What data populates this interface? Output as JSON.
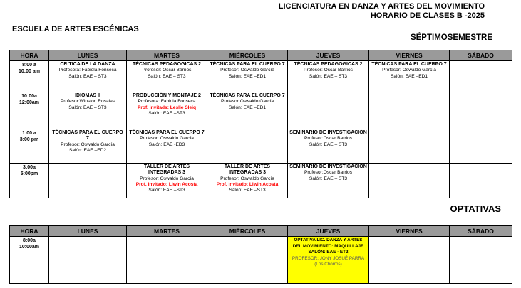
{
  "page": {
    "title_line1": "LICENCIATURA EN DANZA Y ARTES DEL MOVIMIENTO",
    "title_line2": "HORARIO DE CLASES B -2025",
    "school_name": "ESCUELA DE ARTES ESCÉNICAS",
    "semester_label": "SÉPTIMOSEMESTRE",
    "optativas_label": "OPTATIVAS"
  },
  "colors": {
    "table_header_bg": "#9a9a9a",
    "highlight_bg": "#ffff00",
    "invited_text": "#ff0000",
    "muted_text": "#5a5a5a",
    "border": "#000000"
  },
  "main_table": {
    "columns": [
      "HORA",
      "LUNES",
      "MARTES",
      "MIÉRCOLES",
      "JUEVES",
      "VIERNES",
      "SÁBADO"
    ],
    "rows": [
      {
        "time": [
          "8:00 a",
          "10:00 am"
        ],
        "cells": [
          {
            "lines": [
              {
                "t": "CRITICA DE LA DANZA",
                "s": "title"
              },
              {
                "t": "Profesora: Fabiola Fonseca",
                "s": "normal"
              },
              {
                "t": "Salón: EAE – ST3",
                "s": "normal"
              }
            ]
          },
          {
            "lines": [
              {
                "t": "TÉCNICAS PEDAGOGICAS 2",
                "s": "title"
              },
              {
                "t": "Profesor: Oscar Barrios",
                "s": "normal"
              },
              {
                "t": "Salón: EAE – ST3",
                "s": "normal"
              }
            ]
          },
          {
            "lines": [
              {
                "t": "TÉCNICAS PARA EL CUERPO 7",
                "s": "title"
              },
              {
                "t": "Profesor: Oswaldo García",
                "s": "normal"
              },
              {
                "t": "Salón: EAE –ED1",
                "s": "normal"
              }
            ]
          },
          {
            "lines": [
              {
                "t": "TÉCNICAS PEDAGOGICAS 2",
                "s": "title"
              },
              {
                "t": "Profesor: Oscar Barrios",
                "s": "normal"
              },
              {
                "t": "Salón: EAE – ST3",
                "s": "normal"
              }
            ]
          },
          {
            "lines": [
              {
                "t": "TÉCNICAS PARA EL CUERPO 7",
                "s": "title"
              },
              {
                "t": "Profesor: Oswaldo García",
                "s": "normal"
              },
              {
                "t": "Salón: EAE –ED1",
                "s": "normal"
              }
            ]
          },
          {
            "lines": []
          }
        ]
      },
      {
        "time": [
          "10:00a",
          "12:00am"
        ],
        "cells": [
          {
            "lines": [
              {
                "t": "IDIOMAS II",
                "s": "title"
              },
              {
                "t": "Profesor:Winston Rosales",
                "s": "normal"
              },
              {
                "t": "Salón: EAE – ST3",
                "s": "normal"
              }
            ]
          },
          {
            "lines": [
              {
                "t": "PRODUCCIÓN Y MONTAJE 2",
                "s": "title"
              },
              {
                "t": "Profesora: Fabiola Fonseca",
                "s": "normal"
              },
              {
                "t": "Prof. invitada: Leslie Sleiq",
                "s": "red"
              },
              {
                "t": "Salón: EAE –ST3",
                "s": "normal"
              }
            ]
          },
          {
            "lines": [
              {
                "t": "TÉCNICAS PARA EL CUERPO 7",
                "s": "title"
              },
              {
                "t": "Profesor:Oswaldo García",
                "s": "normal"
              },
              {
                "t": "Salón: EAE –ED1",
                "s": "normal"
              }
            ]
          },
          {
            "lines": []
          },
          {
            "lines": []
          },
          {
            "lines": []
          }
        ]
      },
      {
        "time": [
          "1:00 a",
          "3:00 pm"
        ],
        "cells": [
          {
            "lines": [
              {
                "t": "TÉCNICAS PARA EL CUERPO 7",
                "s": "title"
              },
              {
                "t": "Profesor: Oswaldo García",
                "s": "normal"
              },
              {
                "t": "Salón: EAE –ED2",
                "s": "normal"
              }
            ]
          },
          {
            "lines": [
              {
                "t": "TÉCNICAS PARA EL CUERPO 7",
                "s": "title"
              },
              {
                "t": "Profesor: Oswaldo García",
                "s": "normal"
              },
              {
                "t": "Salón: EAE -ED3",
                "s": "normal"
              }
            ]
          },
          {
            "lines": []
          },
          {
            "lines": [
              {
                "t": "SEMINARIO DE INVESTIGACIÓN",
                "s": "title"
              },
              {
                "t": "Profesor:Oscar Barrios",
                "s": "normal"
              },
              {
                "t": "Salón: EAE – ST3",
                "s": "normal"
              }
            ]
          },
          {
            "lines": []
          },
          {
            "lines": []
          }
        ]
      },
      {
        "time": [
          "3:00a",
          "5:00pm"
        ],
        "cells": [
          {
            "lines": []
          },
          {
            "lines": [
              {
                "t": "TALLER DE ARTES INTEGRADAS 3",
                "s": "title"
              },
              {
                "t": "Profesor: Oswaldo García",
                "s": "normal"
              },
              {
                "t": "Prof. invitado: Liwin Acosta",
                "s": "red"
              },
              {
                "t": "Salón: EAE –ST3",
                "s": "normal"
              }
            ]
          },
          {
            "lines": [
              {
                "t": "TALLER DE ARTES INTEGRADAS 3",
                "s": "title"
              },
              {
                "t": "Profesor: Oswaldo García",
                "s": "normal"
              },
              {
                "t": "Prof. invitado: Liwin Acosta",
                "s": "red"
              },
              {
                "t": "Salón: EAE –ST3",
                "s": "normal"
              }
            ]
          },
          {
            "lines": [
              {
                "t": "SEMINARIO DE INVESTIGACIÓN",
                "s": "title"
              },
              {
                "t": "Profesor:Oscar Barrios",
                "s": "normal"
              },
              {
                "t": "Salón: EAE – ST3",
                "s": "normal"
              }
            ]
          },
          {
            "lines": []
          },
          {
            "lines": []
          }
        ]
      }
    ]
  },
  "optativas_table": {
    "columns": [
      "HORA",
      "LUNES",
      "MARTES",
      "MIÉRCOLES",
      "JUEVES",
      "VIERNES",
      "SÁBADO"
    ],
    "rows": [
      {
        "time": [
          "8:00a",
          "10:00am"
        ],
        "cells": [
          {
            "lines": []
          },
          {
            "lines": []
          },
          {
            "lines": []
          },
          {
            "highlight": true,
            "lines": [
              {
                "t": "OPTATIVA LIC. DANZA Y ARTES DEL MOVIMIENTO: MAQUILLAJE",
                "s": "ybold"
              },
              {
                "t": "SALÓN: EAE - ET2",
                "s": "ybold"
              },
              {
                "t": "PROFESOR: JONY JOSUÉ PARRA",
                "s": "ygray"
              },
              {
                "t": "(Los Chorros)",
                "s": "ygray"
              }
            ]
          },
          {
            "lines": []
          },
          {
            "lines": []
          }
        ]
      }
    ]
  }
}
